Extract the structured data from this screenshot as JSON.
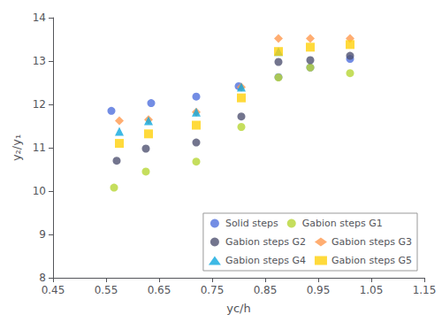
{
  "chart_data": {
    "type": "scatter",
    "xlabel": "yᴄ/h",
    "ylabel": "y₂/y₁",
    "xlim": [
      0.45,
      1.15
    ],
    "ylim": [
      8,
      14
    ],
    "xticks": [
      0.45,
      0.55,
      0.65,
      0.75,
      0.85,
      0.95,
      1.05,
      1.15
    ],
    "yticks": [
      8,
      9,
      10,
      11,
      12,
      13,
      14
    ],
    "grid": false,
    "legend": "lower right",
    "series": [
      {
        "name": "Solid steps",
        "marker": "circle",
        "x": [
          0.56,
          0.635,
          0.72,
          0.8,
          0.875,
          0.935,
          1.01
        ],
        "y": [
          11.85,
          12.03,
          12.18,
          12.42,
          12.63,
          12.85,
          13.05
        ]
      },
      {
        "name": "Gabion steps G1",
        "marker": "circle",
        "x": [
          0.565,
          0.625,
          0.72,
          0.805,
          0.875,
          0.935,
          1.01
        ],
        "y": [
          10.08,
          10.45,
          10.68,
          11.48,
          12.62,
          12.85,
          12.72
        ]
      },
      {
        "name": "Gabion steps G2",
        "marker": "circle",
        "x": [
          0.57,
          0.625,
          0.72,
          0.805,
          0.875,
          0.935,
          1.01
        ],
        "y": [
          10.7,
          10.98,
          11.12,
          11.72,
          12.98,
          13.02,
          13.12
        ]
      },
      {
        "name": "Gabion steps G3",
        "marker": "diamond",
        "x": [
          0.575,
          0.63,
          0.72,
          0.805,
          0.875,
          0.935,
          1.01
        ],
        "y": [
          11.62,
          11.65,
          11.82,
          12.4,
          13.52,
          13.52,
          13.52
        ]
      },
      {
        "name": "Gabion steps G4",
        "marker": "triangle",
        "x": [
          0.575,
          0.63,
          0.72,
          0.805,
          0.875
        ],
        "y": [
          11.38,
          11.62,
          11.82,
          12.4,
          13.22
        ]
      },
      {
        "name": "Gabion steps G5",
        "marker": "square",
        "x": [
          0.575,
          0.63,
          0.72,
          0.805,
          0.875,
          0.935,
          1.01
        ],
        "y": [
          11.1,
          11.32,
          11.52,
          12.15,
          13.22,
          13.32,
          13.38
        ]
      }
    ]
  }
}
